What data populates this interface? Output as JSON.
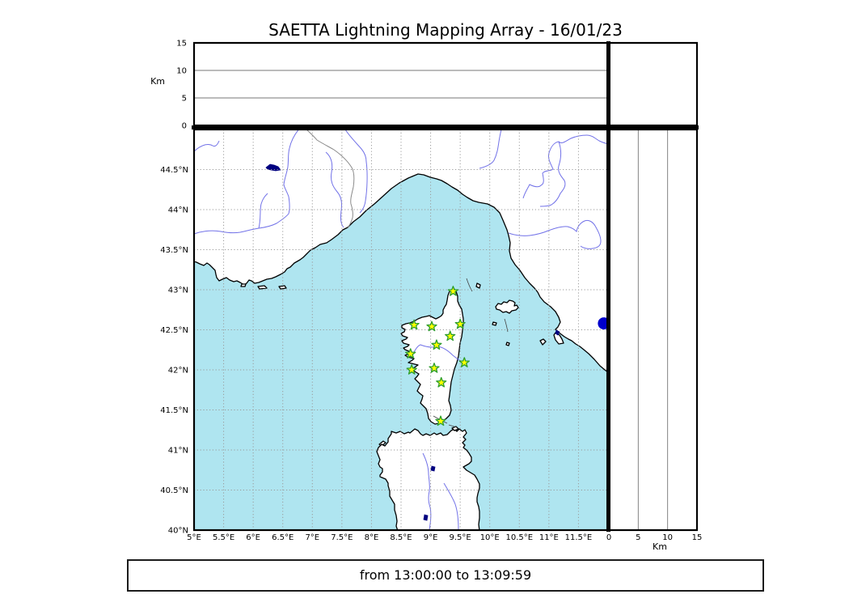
{
  "title": "SAETTA Lightning Mapping Array - 16/01/23",
  "footer": {
    "time_range": "from 13:00:00 to 13:09:59"
  },
  "chart_data": {
    "type": "scatter",
    "description": "Lightning Mapping Array station map with altitude side panels",
    "marker": "star-icon",
    "panels": {
      "top_altitude_panel": {
        "ylabel": "Km",
        "ticks": [
          "0",
          "5",
          "10",
          "15"
        ],
        "tick_values": [
          0,
          5,
          10,
          15
        ],
        "range": [
          0,
          15
        ],
        "grid_values": [
          5,
          10
        ]
      },
      "right_altitude_panel": {
        "xlabel": "Km",
        "ticks": [
          "0",
          "5",
          "10",
          "15"
        ],
        "tick_values": [
          0,
          5,
          10,
          15
        ],
        "range": [
          0,
          15
        ],
        "grid_values": [
          5,
          10
        ]
      },
      "map_panel": {
        "lon_range": [
          5,
          12
        ],
        "lat_range": [
          40,
          45
        ],
        "lon_tick_labels": [
          "5°E",
          "5.5°E",
          "6°E",
          "6.5°E",
          "7°E",
          "7.5°E",
          "8°E",
          "8.5°E",
          "9°E",
          "9.5°E",
          "10°E",
          "10.5°E",
          "11°E",
          "11.5°E"
        ],
        "lon_tick_values": [
          5,
          5.5,
          6,
          6.5,
          7,
          7.5,
          8,
          8.5,
          9,
          9.5,
          10,
          10.5,
          11,
          11.5
        ],
        "lat_tick_labels": [
          "44.5°N",
          "44°N",
          "43.5°N",
          "43°N",
          "42.5°N",
          "42°N",
          "41.5°N",
          "41°N",
          "40.5°N",
          "40°N"
        ],
        "lat_tick_values": [
          44.5,
          44,
          43.5,
          43,
          42.5,
          42,
          41.5,
          41,
          40.5,
          40
        ],
        "grid": "dotted"
      }
    },
    "stations": [
      {
        "lon": 9.38,
        "lat": 42.98
      },
      {
        "lon": 8.72,
        "lat": 42.56
      },
      {
        "lon": 9.02,
        "lat": 42.54
      },
      {
        "lon": 9.5,
        "lat": 42.57
      },
      {
        "lon": 9.33,
        "lat": 42.42
      },
      {
        "lon": 9.1,
        "lat": 42.31
      },
      {
        "lon": 8.66,
        "lat": 42.2
      },
      {
        "lon": 9.57,
        "lat": 42.09
      },
      {
        "lon": 9.06,
        "lat": 42.02
      },
      {
        "lon": 8.68,
        "lat": 42.0
      },
      {
        "lon": 9.18,
        "lat": 41.84
      },
      {
        "lon": 9.17,
        "lat": 41.36
      }
    ],
    "edge_marker": {
      "lon": 11.93,
      "lat": 42.58
    },
    "colors": {
      "sea": "#afe5f0",
      "land": "#ffffff",
      "coast": "#000000",
      "river": "#7272e8",
      "country_border": "#8a8a8a",
      "lake": "#000080",
      "grid": "#9a9a9a",
      "panel_grid": "#777777",
      "station_fill": "#ffff00",
      "station_edge": "#2e9e2e",
      "edge_marker_fill": "#0000cd"
    }
  }
}
